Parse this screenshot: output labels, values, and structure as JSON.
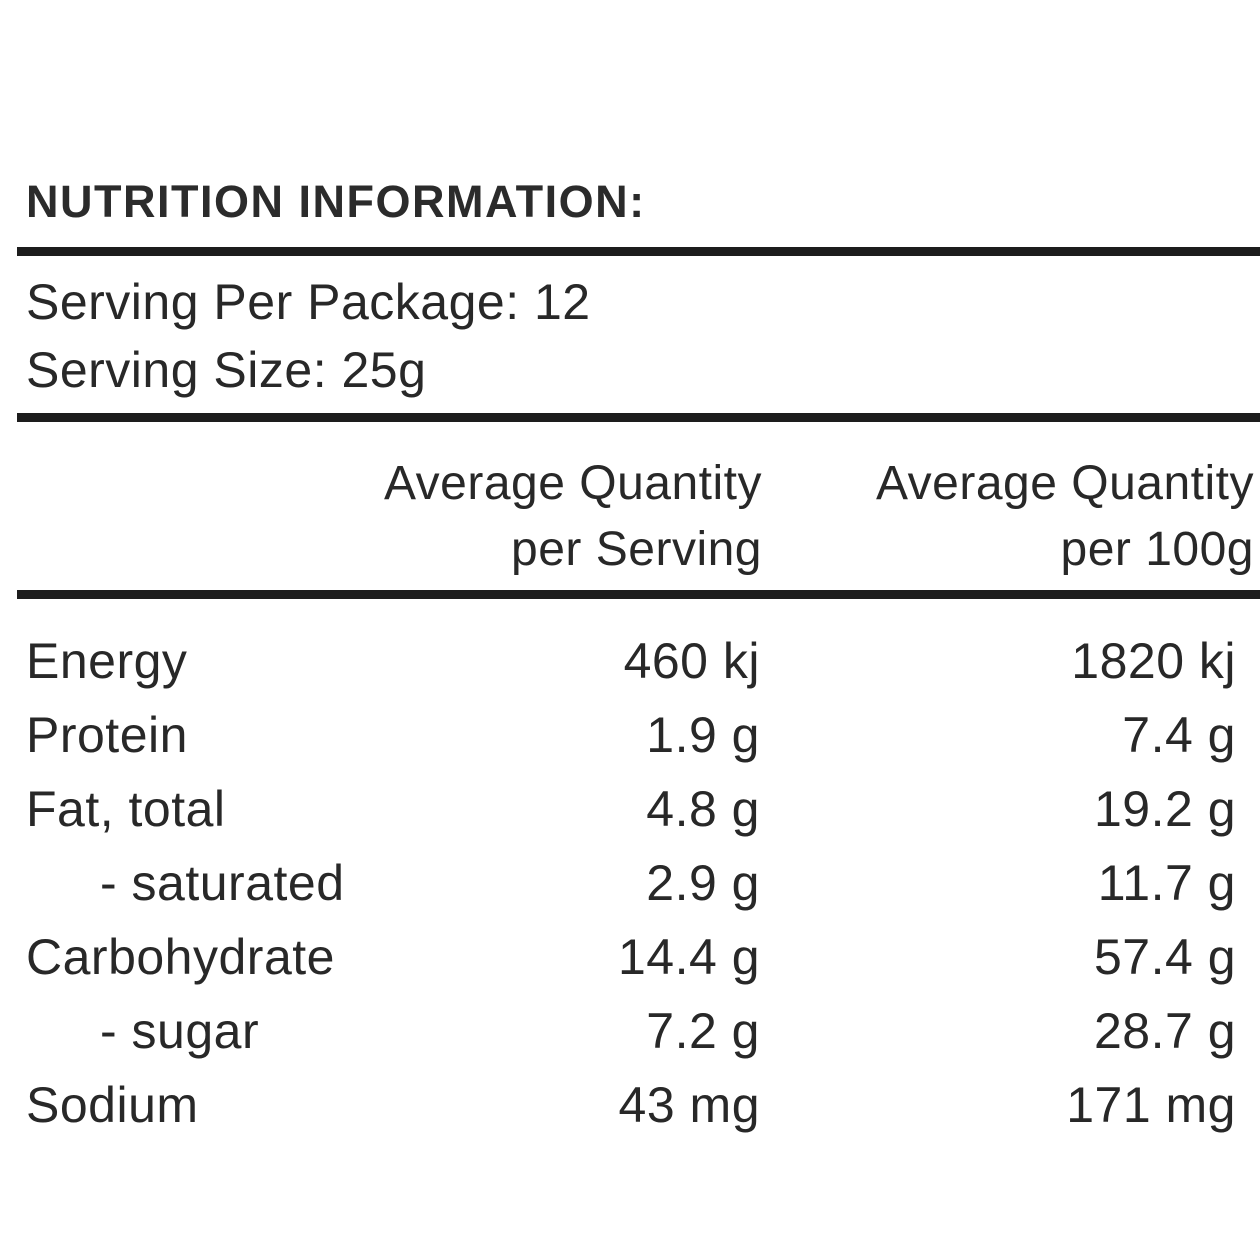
{
  "label": {
    "title": "NUTRITION INFORMATION:",
    "serving_per_package": "Serving Per Package: 12",
    "serving_size": "Serving Size: 25g",
    "columns": {
      "per_serving_line1": "Average Quantity",
      "per_serving_line2": "per Serving",
      "per_100g_line1": "Average Quantity",
      "per_100g_line2": "per 100g"
    },
    "rows": [
      {
        "nutrient": "Energy",
        "per_serving": "460 kj",
        "per_100g": "1820 kj"
      },
      {
        "nutrient": "Protein",
        "per_serving": "1.9 g",
        "per_100g": "7.4 g"
      },
      {
        "nutrient": "Fat, total",
        "per_serving": "4.8 g",
        "per_100g": "19.2 g"
      },
      {
        "nutrient": "- saturated",
        "per_serving": "2.9 g",
        "per_100g": "11.7 g"
      },
      {
        "nutrient": "Carbohydrate",
        "per_serving": "14.4 g",
        "per_100g": "57.4 g"
      },
      {
        "nutrient": "- sugar",
        "per_serving": "7.2 g",
        "per_100g": "28.7 g"
      },
      {
        "nutrient": "Sodium",
        "per_serving": "43 mg",
        "per_100g": "171 mg"
      }
    ],
    "colors": {
      "text": "#282828",
      "rule": "#1d1d1d",
      "background": "#ffffff"
    }
  }
}
